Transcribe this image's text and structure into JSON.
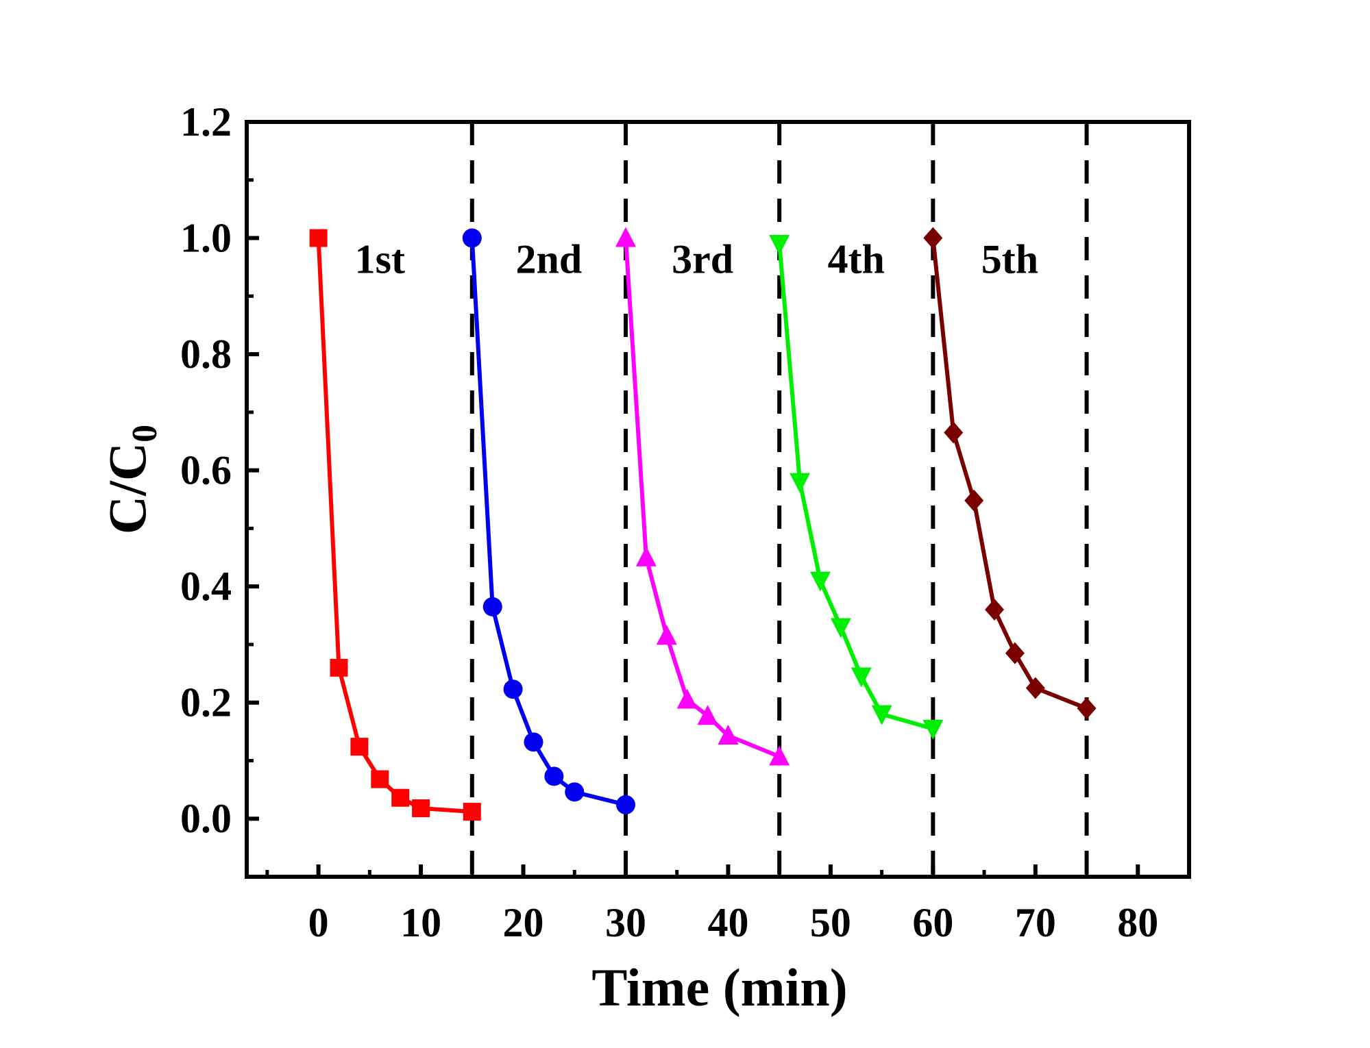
{
  "chart_data": {
    "type": "line",
    "xlabel": "Time (min)",
    "ylabel": "C/C",
    "ylabel_subscript": "0",
    "xlim": [
      -7,
      85
    ],
    "ylim": [
      -0.1,
      1.2
    ],
    "x_ticks": [
      0,
      10,
      20,
      30,
      40,
      50,
      60,
      70,
      80
    ],
    "x_tick_labels": [
      "0",
      "10",
      "20",
      "30",
      "40",
      "50",
      "60",
      "70",
      "80"
    ],
    "y_ticks": [
      0.0,
      0.2,
      0.4,
      0.6,
      0.8,
      1.0,
      1.2
    ],
    "y_tick_labels": [
      "0.0",
      "0.2",
      "0.4",
      "0.6",
      "0.8",
      "1.0",
      "1.2"
    ],
    "dividers": [
      15,
      30,
      45,
      60,
      75
    ],
    "series": [
      {
        "name": "1st",
        "color": "#ff0000",
        "marker": "square",
        "x": [
          0,
          2,
          4,
          6,
          8,
          10,
          15
        ],
        "y": [
          1.0,
          0.26,
          0.124,
          0.068,
          0.036,
          0.018,
          0.012
        ],
        "label_pos": [
          6,
          0.94
        ]
      },
      {
        "name": "2nd",
        "color": "#0000ee",
        "marker": "circle",
        "x": [
          15,
          17,
          19,
          21,
          23,
          25,
          30
        ],
        "y": [
          1.0,
          0.365,
          0.223,
          0.132,
          0.073,
          0.046,
          0.024
        ],
        "label_pos": [
          22.5,
          0.94
        ]
      },
      {
        "name": "3rd",
        "color": "#ff00ff",
        "marker": "triangle-up",
        "x": [
          30,
          32,
          34,
          36,
          38,
          40,
          45
        ],
        "y": [
          1.0,
          0.45,
          0.315,
          0.205,
          0.177,
          0.143,
          0.107
        ],
        "label_pos": [
          37.5,
          0.94
        ]
      },
      {
        "name": "4th",
        "color": "#00ee00",
        "marker": "triangle-down",
        "x": [
          45,
          47,
          49,
          51,
          53,
          55,
          60
        ],
        "y": [
          0.99,
          0.58,
          0.41,
          0.33,
          0.245,
          0.18,
          0.155
        ],
        "label_pos": [
          52.5,
          0.94
        ]
      },
      {
        "name": "5th",
        "color": "#7a0000",
        "marker": "diamond",
        "x": [
          60,
          62,
          64,
          66,
          68,
          70,
          75
        ],
        "y": [
          1.0,
          0.665,
          0.548,
          0.36,
          0.285,
          0.225,
          0.19
        ],
        "label_pos": [
          67.5,
          0.94
        ]
      }
    ]
  }
}
